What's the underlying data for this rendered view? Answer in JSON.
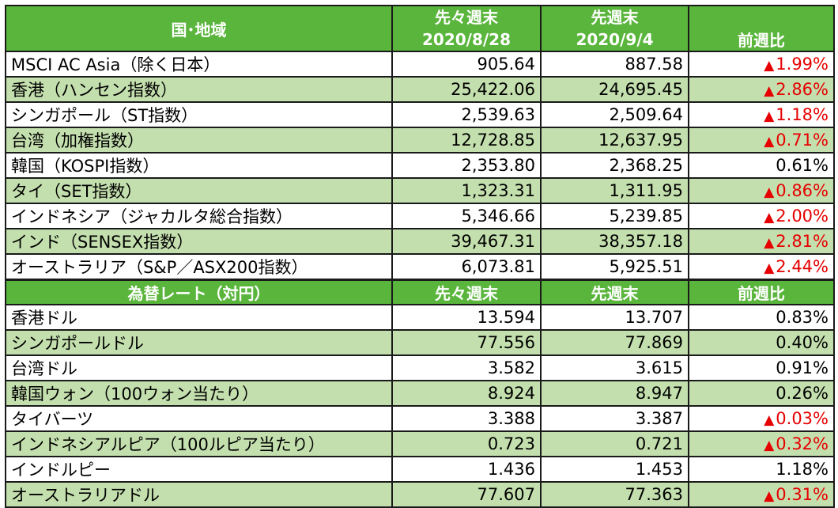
{
  "indices": {
    "headers": {
      "col1": "国･地域",
      "col2_line1": "先々週末",
      "col2_line2": "2020/8/28",
      "col3_line1": "先週末",
      "col3_line2": "2020/9/4",
      "col4": "前週比"
    },
    "rows": [
      {
        "label": "MSCI AC Asia（除く日本）",
        "prev2": "905.64",
        "prev": "887.58",
        "change": "1.99%",
        "down": true
      },
      {
        "label": "香港（ハンセン指数）",
        "prev2": "25,422.06",
        "prev": "24,695.45",
        "change": "2.86%",
        "down": true
      },
      {
        "label": "シンガポール（ST指数）",
        "prev2": "2,539.63",
        "prev": "2,509.64",
        "change": "1.18%",
        "down": true
      },
      {
        "label": "台湾（加権指数）",
        "prev2": "12,728.85",
        "prev": "12,637.95",
        "change": "0.71%",
        "down": true
      },
      {
        "label": "韓国（KOSPI指数）",
        "prev2": "2,353.80",
        "prev": "2,368.25",
        "change": "0.61%",
        "down": false
      },
      {
        "label": "タイ（SET指数）",
        "prev2": "1,323.31",
        "prev": "1,311.95",
        "change": "0.86%",
        "down": true
      },
      {
        "label": "インドネシア（ジャカルタ総合指数）",
        "prev2": "5,346.66",
        "prev": "5,239.85",
        "change": "2.00%",
        "down": true
      },
      {
        "label": "インド（SENSEX指数）",
        "prev2": "39,467.31",
        "prev": "38,357.18",
        "change": "2.81%",
        "down": true
      },
      {
        "label": "オーストラリア（S&P／ASX200指数）",
        "prev2": "6,073.81",
        "prev": "5,925.51",
        "change": "2.44%",
        "down": true
      }
    ]
  },
  "fx": {
    "headers": {
      "col1": "為替レート（対円）",
      "col2": "先々週末",
      "col3": "先週末",
      "col4": "前週比"
    },
    "rows": [
      {
        "label": "香港ドル",
        "prev2": "13.594",
        "prev": "13.707",
        "change": "0.83%",
        "down": false
      },
      {
        "label": "シンガポールドル",
        "prev2": "77.556",
        "prev": "77.869",
        "change": "0.40%",
        "down": false
      },
      {
        "label": "台湾ドル",
        "prev2": "3.582",
        "prev": "3.615",
        "change": "0.91%",
        "down": false
      },
      {
        "label": "韓国ウォン（100ウォン当たり）",
        "prev2": "8.924",
        "prev": "8.947",
        "change": "0.26%",
        "down": false
      },
      {
        "label": "タイバーツ",
        "prev2": "3.388",
        "prev": "3.387",
        "change": "0.03%",
        "down": true
      },
      {
        "label": "インドネシアルピア（100ルピア当たり）",
        "prev2": "0.723",
        "prev": "0.721",
        "change": "0.32%",
        "down": true
      },
      {
        "label": "インドルピー",
        "prev2": "1.436",
        "prev": "1.453",
        "change": "1.18%",
        "down": false
      },
      {
        "label": "オーストラリアドル",
        "prev2": "77.607",
        "prev": "77.363",
        "change": "0.31%",
        "down": true
      }
    ]
  },
  "down_marker": "▲",
  "colors": {
    "header_green": "#5ab53c",
    "alt_row_green": "#c4dfae",
    "negative_red": "#e60000"
  }
}
